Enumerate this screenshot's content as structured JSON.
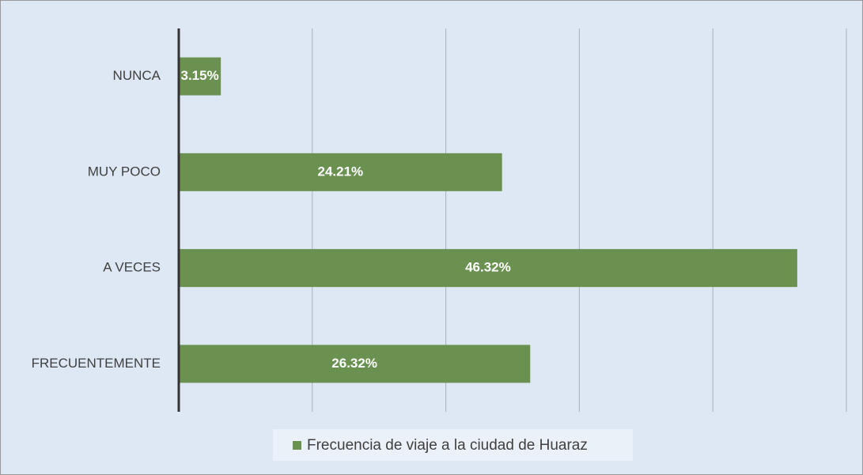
{
  "chart_data": {
    "type": "bar",
    "orientation": "horizontal",
    "categories": [
      "NUNCA",
      "MUY POCO",
      "A VECES",
      "FRECUENTEMENTE"
    ],
    "series": [
      {
        "name": "Frecuencia de viaje a la ciudad de Huaraz",
        "color": "#6a9150",
        "values": [
          3.15,
          24.21,
          46.32,
          26.32
        ],
        "value_labels": [
          "3.15%",
          "24.21%",
          "46.32%",
          "26.32%"
        ]
      }
    ],
    "xlim": [
      0,
      50
    ],
    "xticks": [
      0,
      10,
      20,
      30,
      40,
      50
    ],
    "grid": true,
    "legend": "bottom"
  }
}
